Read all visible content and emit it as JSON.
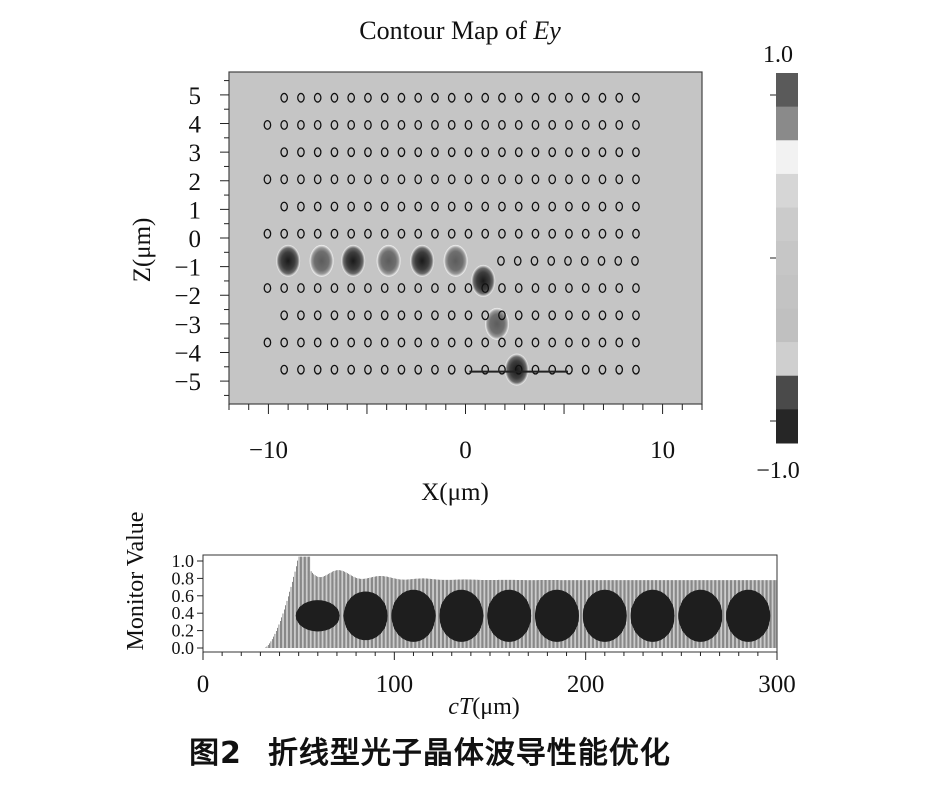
{
  "chart_data": [
    {
      "type": "heatmap",
      "title_prefix": "Contour Map of ",
      "title_var": "Ey",
      "xlabel": "X(μm)",
      "ylabel": "Z(μm)",
      "xlim": [
        -12,
        12
      ],
      "ylim": [
        -5.8,
        5.8
      ],
      "x_ticks": [
        -10,
        0,
        10
      ],
      "y_ticks": [
        5,
        4,
        3,
        2,
        1,
        0,
        -1,
        -2,
        -3,
        -4,
        -5
      ],
      "colorbar": {
        "max_label": "1.0",
        "min_label": "−1.0",
        "levels": [
          "#5a5a5a",
          "#8a8a8a",
          "#f2f2f2",
          "#d6d6d6",
          "#cbcbcb",
          "#c6c6c6",
          "#c3c3c3",
          "#c0c0c0",
          "#cfcfcf",
          "#4a4a4a",
          "#262626"
        ]
      },
      "background_color": "#c5c5c5",
      "lattice": {
        "rows": [
          {
            "z": 4.9,
            "x_start": -9.2,
            "count": 22
          },
          {
            "z": 3.95,
            "x_start": -10.05,
            "count": 23
          },
          {
            "z": 3.0,
            "x_start": -9.2,
            "count": 22
          },
          {
            "z": 2.05,
            "x_start": -10.05,
            "count": 23
          },
          {
            "z": 1.1,
            "x_start": -9.2,
            "count": 22
          },
          {
            "z": 0.15,
            "x_start": -10.05,
            "count": 23
          },
          {
            "z": -0.8,
            "x_start": 1.8,
            "count": 9
          },
          {
            "z": -1.75,
            "x_start": -10.05,
            "count": 23
          },
          {
            "z": -2.7,
            "x_start": -9.2,
            "count": 22
          },
          {
            "z": -3.65,
            "x_start": -10.05,
            "count": 23
          },
          {
            "z": -4.6,
            "x_start": -9.2,
            "count": 22
          }
        ],
        "spacing": 0.85
      },
      "field_spots": [
        {
          "x": -9.0,
          "z": -0.8,
          "sign": -1,
          "intensity": 0.9
        },
        {
          "x": -7.3,
          "z": -0.8,
          "sign": -1,
          "intensity": 0.6
        },
        {
          "x": -5.7,
          "z": -0.8,
          "sign": -1,
          "intensity": 0.9
        },
        {
          "x": -3.9,
          "z": -0.8,
          "sign": -1,
          "intensity": 0.6
        },
        {
          "x": -2.2,
          "z": -0.8,
          "sign": -1,
          "intensity": 0.9
        },
        {
          "x": -0.5,
          "z": -0.8,
          "sign": -1,
          "intensity": 0.6
        },
        {
          "x": 0.9,
          "z": -1.5,
          "sign": -1,
          "intensity": 0.9
        },
        {
          "x": 1.6,
          "z": -3.0,
          "sign": -1,
          "intensity": 0.6
        },
        {
          "x": 2.6,
          "z": -4.6,
          "sign": -1,
          "intensity": 0.9
        }
      ],
      "monitor_line": {
        "x_from": 0.2,
        "x_to": 5.2,
        "z": -4.6
      }
    },
    {
      "type": "line",
      "ylabel": "Monitor Value",
      "xlabel_prefix": "c",
      "xlabel_var": "T",
      "xlabel_unit": "(μm)",
      "xlim": [
        0,
        300
      ],
      "ylim": [
        0,
        1.0
      ],
      "x_ticks": [
        0,
        100,
        200,
        300
      ],
      "y_ticks": [
        "1.0",
        "0.8",
        "0.6",
        "0.4",
        "0.2",
        "0.0"
      ],
      "envelope": {
        "onset": 32,
        "first_peak": {
          "x": 50,
          "y": 1.05
        },
        "plateau_max": 0.78,
        "plateau_min": 0.0,
        "beat_period": 25,
        "beat_amplitude_max": 0.6,
        "beat_amplitude_min": 0.12
      }
    }
  ],
  "caption": {
    "number": "图2",
    "text": "折线型光子晶体波导性能优化"
  }
}
